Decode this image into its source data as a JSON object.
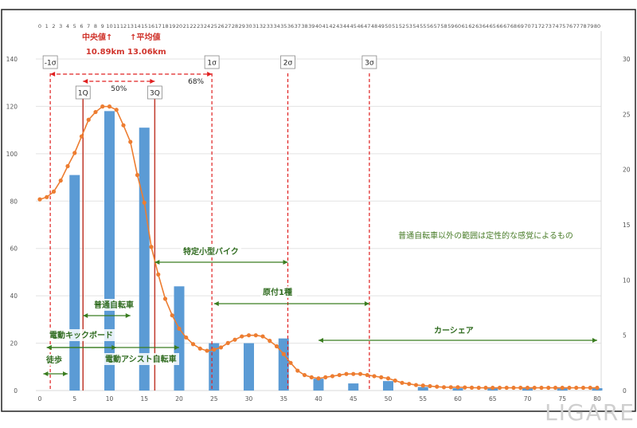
{
  "chart_data": {
    "type": "bar",
    "x_primary_ticks": [
      0,
      5,
      10,
      15,
      20,
      25,
      30,
      35,
      40,
      45,
      50,
      55,
      60,
      65,
      70,
      75,
      80
    ],
    "y_left_ticks": [
      0,
      20,
      40,
      60,
      80,
      100,
      120,
      140
    ],
    "y_right_ticks": [
      0,
      5,
      10,
      15,
      20,
      25,
      30
    ],
    "xlim": [
      0,
      80
    ],
    "ylim_left": [
      0,
      140
    ],
    "ylim_right": [
      0,
      30
    ],
    "bars": {
      "x": [
        5,
        10,
        15,
        20,
        25,
        30,
        35,
        40,
        45,
        50,
        55,
        60,
        65,
        70,
        75,
        80
      ],
      "values": [
        91,
        118,
        111,
        44,
        20,
        20,
        22,
        5,
        3,
        4,
        1.5,
        1,
        1,
        1,
        1,
        1
      ],
      "color": "#5b9bd5"
    },
    "curve": {
      "color": "#ed7d31",
      "x": [
        0,
        1,
        2,
        3,
        4,
        5,
        6,
        7,
        8,
        9,
        10,
        11,
        12,
        13,
        14,
        15,
        16,
        17,
        18,
        19,
        20,
        21,
        22,
        23,
        24,
        25,
        26,
        27,
        28,
        29,
        30,
        31,
        32,
        33,
        34,
        35,
        36,
        37,
        38,
        39,
        40,
        41,
        42,
        43,
        44,
        45,
        46,
        47,
        48,
        49,
        50,
        51,
        52,
        53,
        54,
        55,
        56,
        57,
        58,
        59,
        60,
        61,
        62,
        63,
        64,
        65,
        66,
        67,
        68,
        69,
        70,
        71,
        72,
        73,
        74,
        75,
        76,
        77,
        78,
        79,
        80
      ],
      "values": [
        17.3,
        17.5,
        18,
        19,
        20.3,
        21.5,
        23,
        24.5,
        25.2,
        25.7,
        25.7,
        25.4,
        24,
        22.5,
        19.5,
        17,
        13,
        10.5,
        8.3,
        6.8,
        5.6,
        4.8,
        4.2,
        3.8,
        3.6,
        3.7,
        3.9,
        4.3,
        4.6,
        4.9,
        5,
        5,
        4.9,
        4.5,
        4,
        3.3,
        2.5,
        1.8,
        1.4,
        1.2,
        1.1,
        1.2,
        1.3,
        1.4,
        1.5,
        1.5,
        1.5,
        1.4,
        1.3,
        1.2,
        1.1,
        0.9,
        0.7,
        0.6,
        0.5,
        0.45,
        0.4,
        0.35,
        0.3,
        0.3,
        0.3,
        0.28,
        0.26,
        0.25,
        0.25,
        0.25,
        0.25,
        0.25,
        0.25,
        0.25,
        0.25,
        0.25,
        0.25,
        0.25,
        0.25,
        0.25,
        0.25,
        0.25,
        0.25,
        0.25,
        0.25
      ]
    },
    "top_axis_ticks": [
      "0",
      "1",
      "2",
      "3",
      "4",
      "5",
      "6",
      "7",
      "8",
      "9",
      "10",
      "11",
      "12",
      "13",
      "14",
      "15",
      "16",
      "17",
      "18",
      "19",
      "20",
      "21",
      "22",
      "23",
      "24",
      "25",
      "26",
      "27",
      "28",
      "29",
      "30",
      "31",
      "32",
      "33",
      "34",
      "35",
      "36",
      "37",
      "38",
      "39",
      "40",
      "41",
      "42",
      "43",
      "44",
      "45",
      "46",
      "47",
      "48",
      "49",
      "50",
      "51",
      "52",
      "53",
      "54",
      "55",
      "56",
      "57",
      "58",
      "59",
      "60",
      "61",
      "62",
      "63",
      "64",
      "65",
      "66",
      "67",
      "68",
      "69",
      "70",
      "71",
      "72",
      "73",
      "74",
      "75",
      "76",
      "77",
      "78",
      "79",
      "80"
    ],
    "vlines": [
      {
        "label": "-1σ",
        "x": 1.5,
        "color": "#e02020",
        "style": "dash"
      },
      {
        "label": "1Q",
        "x": 6.2,
        "color": "#c0392b",
        "style": "solid"
      },
      {
        "label": "3Q",
        "x": 16.5,
        "color": "#c0392b",
        "style": "solid"
      },
      {
        "label": "1σ",
        "x": 24.7,
        "color": "#e02020",
        "style": "dash"
      },
      {
        "label": "2σ",
        "x": 35.6,
        "color": "#e02020",
        "style": "dash"
      },
      {
        "label": "3σ",
        "x": 47.3,
        "color": "#e02020",
        "style": "dash"
      }
    ],
    "median_label": "中央値↑",
    "median_value": "10.89km",
    "mean_label": "↑平均値",
    "mean_value": "13.06km",
    "brackets": [
      {
        "label": "50%",
        "from": 6.2,
        "to": 16.5
      },
      {
        "label": "68%",
        "from": 1.5,
        "to": 24.7
      }
    ],
    "ranges": [
      {
        "label": "徒歩",
        "from": 0.5,
        "to": 4
      },
      {
        "label": "電動キックボード",
        "from": 1,
        "to": 11
      },
      {
        "label": "普通自転車",
        "from": 6.2,
        "to": 13
      },
      {
        "label": "電動アシスト自転車",
        "from": 1,
        "to": 20
      },
      {
        "label": "特定小型バイク",
        "from": 16.5,
        "to": 35.6
      },
      {
        "label": "原付1種",
        "from": 25,
        "to": 47.3
      },
      {
        "label": "カーシェア",
        "from": 40,
        "to": 80
      }
    ],
    "note": "普通自転車以外の範囲は定性的な感覚によるもの"
  },
  "watermark": "LIGARE"
}
